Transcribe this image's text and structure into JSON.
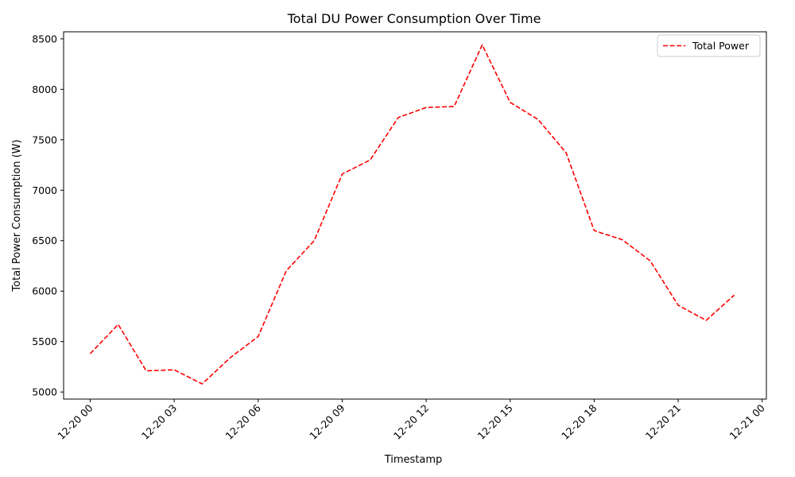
{
  "chart_data": {
    "type": "line",
    "title": "Total DU Power Consumption Over Time",
    "xlabel": "Timestamp",
    "ylabel": "Total Power Consumption (W)",
    "x_tick_labels": [
      "12-20 00",
      "12-20 03",
      "12-20 06",
      "12-20 09",
      "12-20 12",
      "12-20 15",
      "12-20 18",
      "12-20 21",
      "12-21 00"
    ],
    "y_tick_labels": [
      "5000",
      "5500",
      "6000",
      "6500",
      "7000",
      "7500",
      "8000",
      "8500"
    ],
    "ylim": [
      4930,
      8570
    ],
    "xlim": [
      "12-19 23:03",
      "12-21 00:09"
    ],
    "legend_position": "upper right",
    "grid": false,
    "series": [
      {
        "name": "Total Power",
        "color": "#ff0000",
        "line_style": "dashed",
        "x": [
          "12-20 00:00",
          "12-20 01:00",
          "12-20 02:00",
          "12-20 03:00",
          "12-20 04:00",
          "12-20 05:00",
          "12-20 06:00",
          "12-20 07:00",
          "12-20 08:00",
          "12-20 09:00",
          "12-20 10:00",
          "12-20 11:00",
          "12-20 12:00",
          "12-20 13:00",
          "12-20 14:00",
          "12-20 15:00",
          "12-20 16:00",
          "12-20 17:00",
          "12-20 18:00",
          "12-20 19:00",
          "12-20 20:00",
          "12-20 21:00",
          "12-20 22:00",
          "12-20 23:00"
        ],
        "values": [
          5380,
          5670,
          5210,
          5220,
          5080,
          5340,
          5550,
          6200,
          6500,
          7160,
          7300,
          7720,
          7820,
          7830,
          8440,
          7870,
          7700,
          7370,
          6600,
          6510,
          6300,
          5860,
          5710,
          5960
        ]
      }
    ]
  }
}
